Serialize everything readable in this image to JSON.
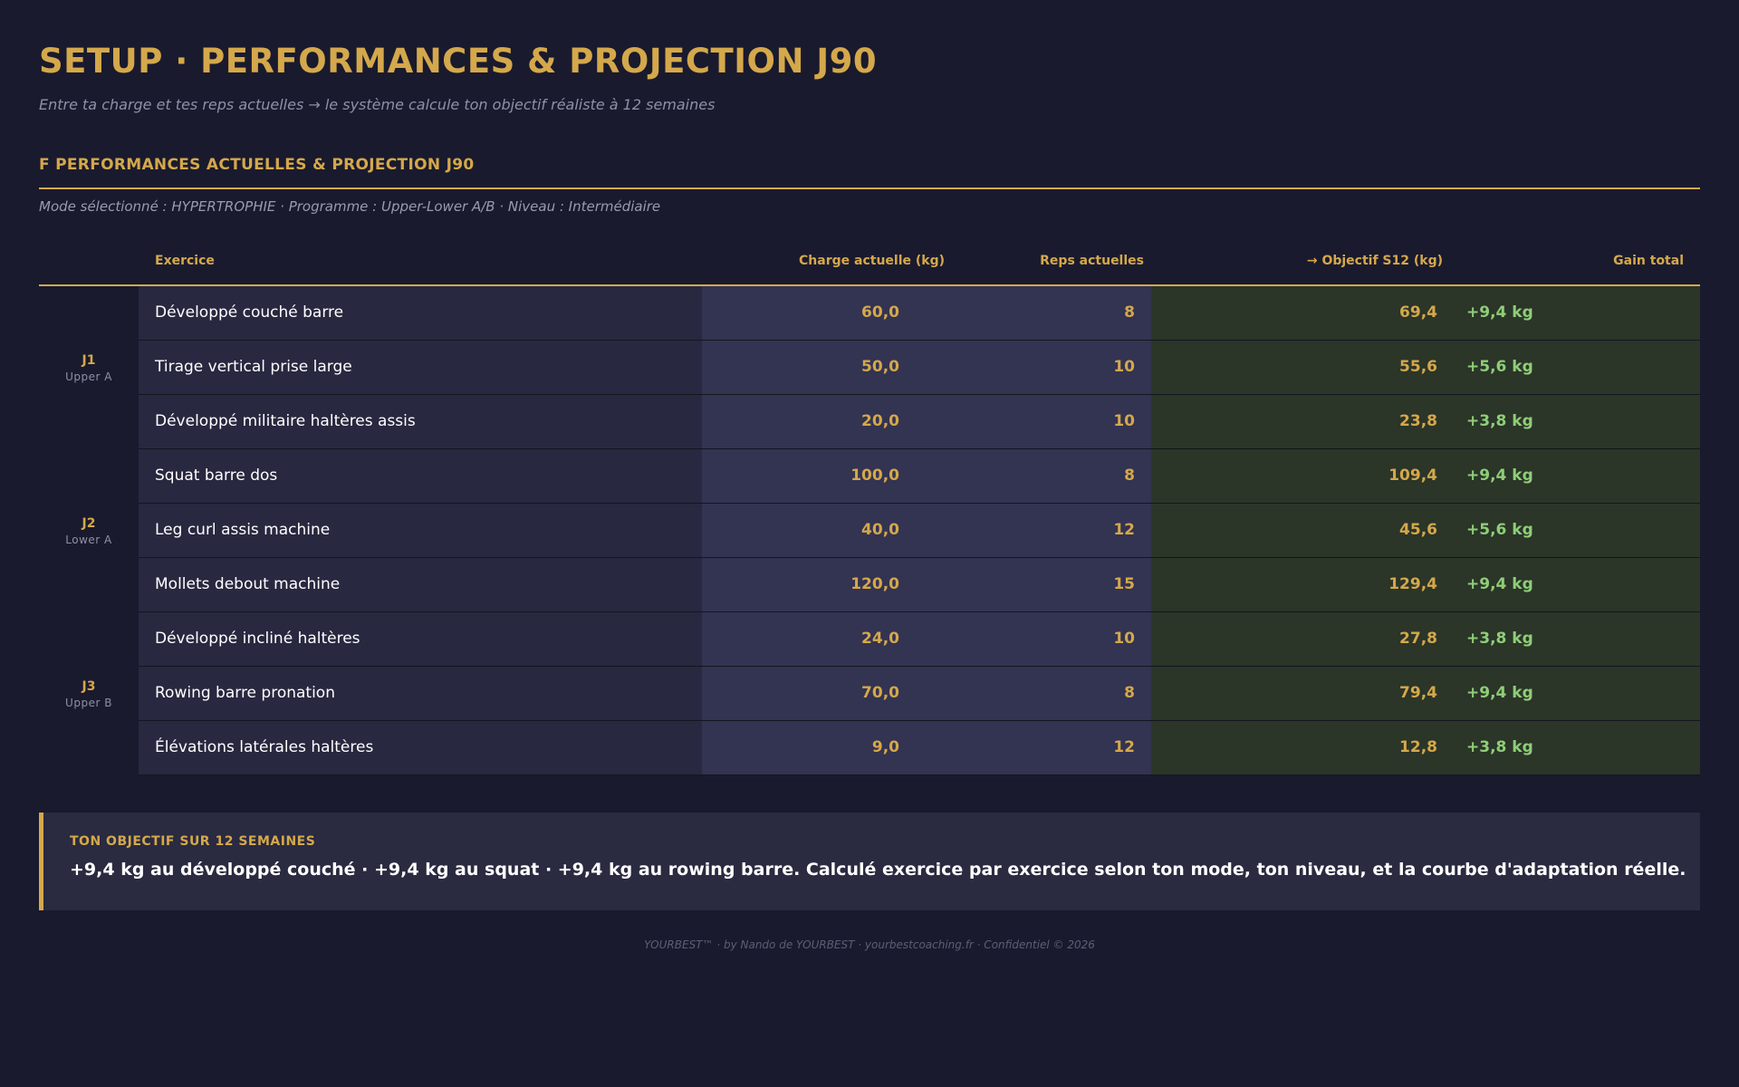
{
  "header": {
    "title": "SETUP · PERFORMANCES & PROJECTION J90",
    "subtitle": "Entre ta charge et tes reps actuelles → le système calcule ton objectif réaliste à 12 semaines"
  },
  "section": {
    "title": "F PERFORMANCES ACTUELLES & PROJECTION J90",
    "mode_line": "Mode sélectionné : HYPERTROPHIE · Programme : Upper-Lower A/B · Niveau : Intermédiaire"
  },
  "table": {
    "columns": {
      "exercise": "Exercice",
      "charge": "Charge actuelle (kg)",
      "reps": "Reps actuelles",
      "objective": "→ Objectif S12 (kg)",
      "gain": "Gain total"
    },
    "days": [
      {
        "code": "J1",
        "name": "Upper A",
        "rows": [
          {
            "exercise": "Développé couché barre",
            "charge": "60,0",
            "reps": "8",
            "objective": "69,4",
            "gain": "+9,4 kg"
          },
          {
            "exercise": "Tirage vertical prise large",
            "charge": "50,0",
            "reps": "10",
            "objective": "55,6",
            "gain": "+5,6 kg"
          },
          {
            "exercise": "Développé militaire haltères assis",
            "charge": "20,0",
            "reps": "10",
            "objective": "23,8",
            "gain": "+3,8 kg"
          }
        ]
      },
      {
        "code": "J2",
        "name": "Lower A",
        "rows": [
          {
            "exercise": "Squat barre dos",
            "charge": "100,0",
            "reps": "8",
            "objective": "109,4",
            "gain": "+9,4 kg"
          },
          {
            "exercise": "Leg curl assis machine",
            "charge": "40,0",
            "reps": "12",
            "objective": "45,6",
            "gain": "+5,6 kg"
          },
          {
            "exercise": "Mollets debout machine",
            "charge": "120,0",
            "reps": "15",
            "objective": "129,4",
            "gain": "+9,4 kg"
          }
        ]
      },
      {
        "code": "J3",
        "name": "Upper B",
        "rows": [
          {
            "exercise": "Développé incliné haltères",
            "charge": "24,0",
            "reps": "10",
            "objective": "27,8",
            "gain": "+3,8 kg"
          },
          {
            "exercise": "Rowing barre pronation",
            "charge": "70,0",
            "reps": "8",
            "objective": "79,4",
            "gain": "+9,4 kg"
          },
          {
            "exercise": "Élévations latérales haltères",
            "charge": "9,0",
            "reps": "12",
            "objective": "12,8",
            "gain": "+3,8 kg"
          }
        ]
      }
    ]
  },
  "callout": {
    "heading": "TON OBJECTIF SUR 12 SEMAINES",
    "text": "+9,4 kg au développé couché · +9,4 kg au squat · +9,4 kg au rowing barre. Calculé exercice par exercice selon ton mode, ton niveau, et la courbe d'adaptation réelle."
  },
  "footer": {
    "text": "YOURBEST™ · by Nando de YOURBEST · yourbestcoaching.fr · Confidentiel © 2026"
  },
  "colors": {
    "background": "#1a1a2e",
    "accent_gold": "#d4a84b",
    "gain_green": "#8fce78",
    "current_bg": "#333352",
    "objective_bg": "#2b3528"
  }
}
